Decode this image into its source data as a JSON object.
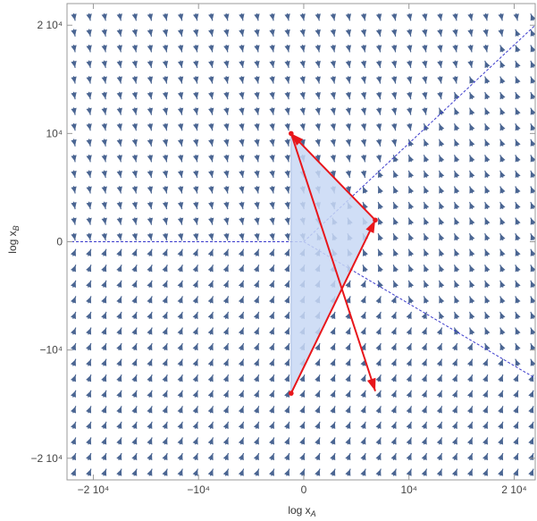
{
  "chart_data": {
    "type": "stream_plot",
    "xlabel": "log x",
    "xlabel_sub": "A",
    "ylabel": "log x",
    "ylabel_sub": "B",
    "xlim": [
      -22500,
      22000
    ],
    "ylim": [
      -22000,
      22000
    ],
    "x_ticks": [
      {
        "value": -20000,
        "label": "−2 10⁴"
      },
      {
        "value": -10000,
        "label": "−10⁴"
      },
      {
        "value": 0,
        "label": "0"
      },
      {
        "value": 10000,
        "label": "10⁴"
      },
      {
        "value": 20000,
        "label": "2 10⁴"
      }
    ],
    "y_ticks": [
      {
        "value": 20000,
        "label": "2 10⁴"
      },
      {
        "value": 10000,
        "label": "10⁴"
      },
      {
        "value": 0,
        "label": "0"
      },
      {
        "value": -10000,
        "label": "−10⁴"
      },
      {
        "value": -20000,
        "label": "−2 10⁴"
      }
    ],
    "boundary_lines": [
      {
        "name": "left-horizontal",
        "points": [
          [
            -22500,
            0
          ],
          [
            0,
            0
          ]
        ]
      },
      {
        "name": "upper-right-diagonal",
        "points": [
          [
            0,
            0
          ],
          [
            22000,
            20000
          ]
        ]
      },
      {
        "name": "lower-right-diagonal",
        "points": [
          [
            0,
            0
          ],
          [
            22000,
            -12600
          ]
        ]
      }
    ],
    "shaded_region": [
      [
        -1200,
        10000
      ],
      [
        6800,
        2000
      ],
      [
        -1200,
        -14000
      ]
    ],
    "trajectory": [
      {
        "from": [
          -1200,
          -14000
        ],
        "to": [
          6800,
          2000
        ]
      },
      {
        "from": [
          6800,
          2000
        ],
        "to": [
          -1200,
          10000
        ]
      },
      {
        "from": [
          -1200,
          10000
        ],
        "to": [
          6800,
          -13800
        ]
      }
    ],
    "trajectory_points": [
      [
        -1200,
        -14000
      ],
      [
        6800,
        2000
      ],
      [
        -1200,
        10000
      ]
    ],
    "colors": {
      "stream": "#4a6592",
      "boundary": "#3b3bcc",
      "shade": "#c8d8f4",
      "shade_edge": "#a9bde4",
      "trajectory": "#e8161b",
      "frame": "#999999"
    }
  }
}
